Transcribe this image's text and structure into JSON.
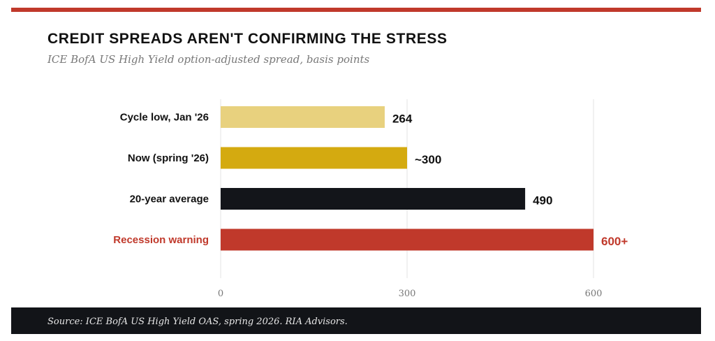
{
  "header": {
    "title": "CREDIT SPREADS AREN'T CONFIRMING THE STRESS",
    "subtitle": "ICE BofA US High Yield option-adjusted spread, basis points"
  },
  "footer": {
    "source": "Source: ICE BofA US High Yield OAS, spring 2026. RIA Advisors."
  },
  "colors": {
    "accent": "#c0392b",
    "footer_bg": "#121418"
  },
  "chart_data": {
    "type": "bar",
    "orientation": "horizontal",
    "categories": [
      "Cycle low, Jan '26",
      "Now (spring '26)",
      "20-year average",
      "Recession warning"
    ],
    "values": [
      264,
      300,
      490,
      600
    ],
    "value_labels": [
      "264",
      "~300",
      "490",
      "600+"
    ],
    "bar_colors": [
      "#e8d17e",
      "#d4aa10",
      "#13151a",
      "#c0392b"
    ],
    "label_colors": [
      "#111111",
      "#111111",
      "#111111",
      "#c0392b"
    ],
    "x_ticks": [
      "0",
      "300",
      "600"
    ],
    "xlim": [
      0,
      600
    ],
    "grid": true
  }
}
